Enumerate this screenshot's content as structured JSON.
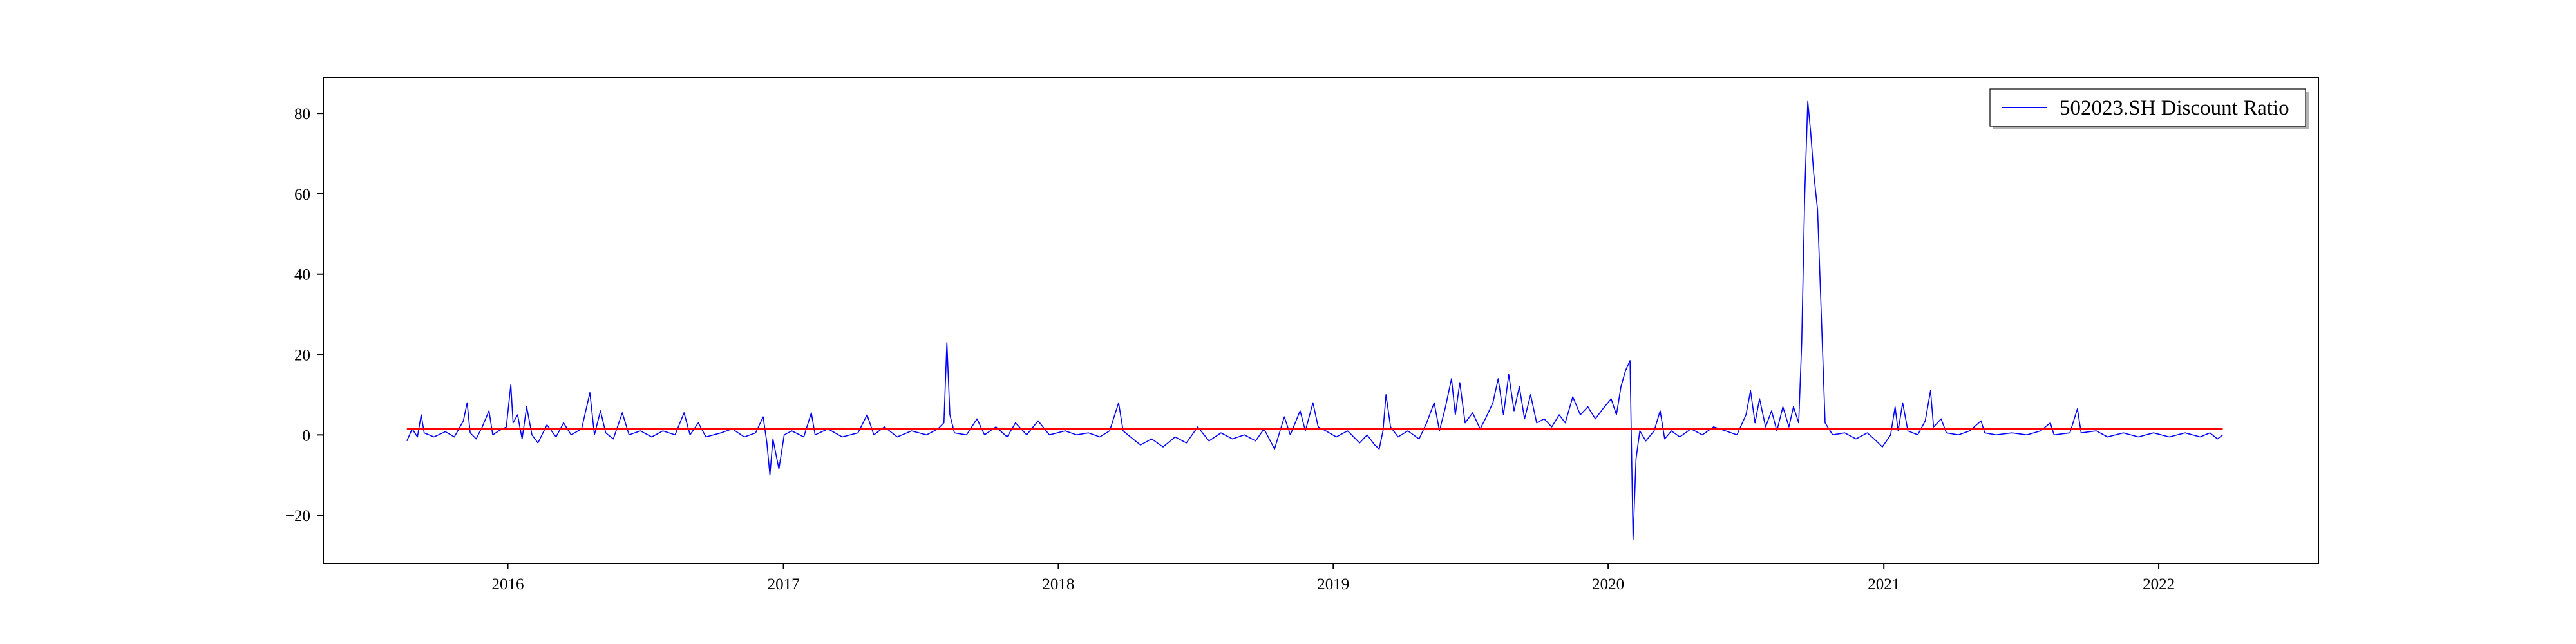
{
  "chart_data": {
    "type": "line",
    "title": "",
    "xlabel": "",
    "ylabel": "",
    "xlim": [
      "2015-05-01",
      "2022-08-01"
    ],
    "ylim": [
      -32,
      89
    ],
    "grid": false,
    "legend_placement": "top-right",
    "x_ticks": [
      {
        "date": "2016-01-01",
        "label": "2016"
      },
      {
        "date": "2017-01-01",
        "label": "2017"
      },
      {
        "date": "2018-01-01",
        "label": "2018"
      },
      {
        "date": "2019-01-01",
        "label": "2019"
      },
      {
        "date": "2020-01-01",
        "label": "2020"
      },
      {
        "date": "2021-01-01",
        "label": "2021"
      },
      {
        "date": "2022-01-01",
        "label": "2022"
      }
    ],
    "y_ticks": [
      {
        "value": 80,
        "label": "80"
      },
      {
        "value": 60,
        "label": "60"
      },
      {
        "value": 40,
        "label": "40"
      },
      {
        "value": 20,
        "label": "20"
      },
      {
        "value": 0,
        "label": "0"
      },
      {
        "value": -20,
        "label": "−20"
      }
    ],
    "series": [
      {
        "name": "502023.SH Discount Ratio",
        "color": "#0000ff",
        "points": [
          [
            "2015-08-20",
            -1.5
          ],
          [
            "2015-08-27",
            1.5
          ],
          [
            "2015-09-03",
            -0.5
          ],
          [
            "2015-09-08",
            5.0
          ],
          [
            "2015-09-12",
            0.5
          ],
          [
            "2015-09-25",
            -0.5
          ],
          [
            "2015-10-10",
            0.8
          ],
          [
            "2015-10-22",
            -0.5
          ],
          [
            "2015-11-03",
            3.5
          ],
          [
            "2015-11-08",
            8.0
          ],
          [
            "2015-11-12",
            0.5
          ],
          [
            "2015-11-20",
            -1.0
          ],
          [
            "2015-11-28",
            2.0
          ],
          [
            "2015-12-07",
            6.0
          ],
          [
            "2015-12-12",
            0.0
          ],
          [
            "2015-12-20",
            1.0
          ],
          [
            "2015-12-30",
            2.0
          ],
          [
            "2016-01-05",
            12.5
          ],
          [
            "2016-01-08",
            3.0
          ],
          [
            "2016-01-14",
            5.0
          ],
          [
            "2016-01-20",
            -1.0
          ],
          [
            "2016-01-26",
            7.0
          ],
          [
            "2016-02-02",
            0.0
          ],
          [
            "2016-02-10",
            -2.0
          ],
          [
            "2016-02-22",
            2.5
          ],
          [
            "2016-03-05",
            -0.5
          ],
          [
            "2016-03-15",
            3.0
          ],
          [
            "2016-03-25",
            0.0
          ],
          [
            "2016-04-08",
            1.5
          ],
          [
            "2016-04-19",
            10.5
          ],
          [
            "2016-04-25",
            0.0
          ],
          [
            "2016-05-03",
            6.0
          ],
          [
            "2016-05-10",
            0.5
          ],
          [
            "2016-05-20",
            -1.0
          ],
          [
            "2016-06-01",
            5.5
          ],
          [
            "2016-06-10",
            0.0
          ],
          [
            "2016-06-25",
            1.0
          ],
          [
            "2016-07-10",
            -0.5
          ],
          [
            "2016-07-25",
            1.0
          ],
          [
            "2016-08-10",
            0.0
          ],
          [
            "2016-08-22",
            5.5
          ],
          [
            "2016-08-30",
            0.0
          ],
          [
            "2016-09-10",
            3.0
          ],
          [
            "2016-09-20",
            -0.5
          ],
          [
            "2016-10-10",
            0.5
          ],
          [
            "2016-10-25",
            1.5
          ],
          [
            "2016-11-10",
            -0.5
          ],
          [
            "2016-11-25",
            0.5
          ],
          [
            "2016-12-05",
            4.5
          ],
          [
            "2016-12-10",
            -2.0
          ],
          [
            "2016-12-14",
            -10.0
          ],
          [
            "2016-12-18",
            -1.0
          ],
          [
            "2016-12-26",
            -8.5
          ],
          [
            "2017-01-02",
            0.0
          ],
          [
            "2017-01-12",
            1.0
          ],
          [
            "2017-01-28",
            -0.5
          ],
          [
            "2017-02-07",
            5.5
          ],
          [
            "2017-02-12",
            0.0
          ],
          [
            "2017-03-01",
            1.5
          ],
          [
            "2017-03-20",
            -0.5
          ],
          [
            "2017-04-10",
            0.5
          ],
          [
            "2017-04-22",
            5.0
          ],
          [
            "2017-05-01",
            0.0
          ],
          [
            "2017-05-15",
            2.0
          ],
          [
            "2017-06-01",
            -0.5
          ],
          [
            "2017-06-20",
            1.0
          ],
          [
            "2017-07-10",
            0.0
          ],
          [
            "2017-07-25",
            1.5
          ],
          [
            "2017-08-02",
            3.0
          ],
          [
            "2017-08-06",
            23.0
          ],
          [
            "2017-08-10",
            5.0
          ],
          [
            "2017-08-16",
            0.5
          ],
          [
            "2017-09-01",
            0.0
          ],
          [
            "2017-09-15",
            4.0
          ],
          [
            "2017-09-25",
            0.0
          ],
          [
            "2017-10-10",
            2.0
          ],
          [
            "2017-10-25",
            -0.5
          ],
          [
            "2017-11-05",
            3.0
          ],
          [
            "2017-11-20",
            0.0
          ],
          [
            "2017-12-05",
            3.5
          ],
          [
            "2017-12-20",
            0.0
          ],
          [
            "2018-01-10",
            1.0
          ],
          [
            "2018-01-25",
            0.0
          ],
          [
            "2018-02-10",
            0.5
          ],
          [
            "2018-02-25",
            -0.5
          ],
          [
            "2018-03-10",
            1.0
          ],
          [
            "2018-03-22",
            8.0
          ],
          [
            "2018-03-28",
            1.0
          ],
          [
            "2018-04-10",
            -1.0
          ],
          [
            "2018-04-20",
            -2.5
          ],
          [
            "2018-05-05",
            -1.0
          ],
          [
            "2018-05-20",
            -3.0
          ],
          [
            "2018-06-05",
            -0.5
          ],
          [
            "2018-06-20",
            -2.0
          ],
          [
            "2018-07-05",
            2.0
          ],
          [
            "2018-07-20",
            -1.5
          ],
          [
            "2018-08-05",
            0.5
          ],
          [
            "2018-08-20",
            -1.0
          ],
          [
            "2018-09-05",
            0.0
          ],
          [
            "2018-09-20",
            -1.5
          ],
          [
            "2018-10-01",
            1.5
          ],
          [
            "2018-10-15",
            -3.5
          ],
          [
            "2018-10-28",
            4.5
          ],
          [
            "2018-11-05",
            0.0
          ],
          [
            "2018-11-18",
            6.0
          ],
          [
            "2018-11-25",
            1.0
          ],
          [
            "2018-12-05",
            8.0
          ],
          [
            "2018-12-12",
            2.0
          ],
          [
            "2018-12-22",
            1.0
          ],
          [
            "2019-01-05",
            -0.5
          ],
          [
            "2019-01-20",
            1.0
          ],
          [
            "2019-02-05",
            -2.0
          ],
          [
            "2019-02-15",
            0.0
          ],
          [
            "2019-02-25",
            -2.5
          ],
          [
            "2019-03-03",
            -3.5
          ],
          [
            "2019-03-08",
            1.0
          ],
          [
            "2019-03-12",
            10.0
          ],
          [
            "2019-03-18",
            2.0
          ],
          [
            "2019-03-28",
            -0.5
          ],
          [
            "2019-04-10",
            1.0
          ],
          [
            "2019-04-25",
            -1.0
          ],
          [
            "2019-05-05",
            3.0
          ],
          [
            "2019-05-15",
            8.0
          ],
          [
            "2019-05-22",
            1.0
          ],
          [
            "2019-05-30",
            7.0
          ],
          [
            "2019-06-07",
            14.0
          ],
          [
            "2019-06-12",
            5.0
          ],
          [
            "2019-06-18",
            13.0
          ],
          [
            "2019-06-25",
            3.0
          ],
          [
            "2019-07-05",
            5.5
          ],
          [
            "2019-07-15",
            1.5
          ],
          [
            "2019-07-22",
            4.0
          ],
          [
            "2019-08-01",
            8.0
          ],
          [
            "2019-08-08",
            14.0
          ],
          [
            "2019-08-15",
            5.0
          ],
          [
            "2019-08-22",
            15.0
          ],
          [
            "2019-08-29",
            6.0
          ],
          [
            "2019-09-05",
            12.0
          ],
          [
            "2019-09-12",
            4.0
          ],
          [
            "2019-09-20",
            10.0
          ],
          [
            "2019-09-28",
            3.0
          ],
          [
            "2019-10-08",
            4.0
          ],
          [
            "2019-10-18",
            2.0
          ],
          [
            "2019-10-28",
            5.0
          ],
          [
            "2019-11-05",
            3.0
          ],
          [
            "2019-11-15",
            9.5
          ],
          [
            "2019-11-25",
            5.0
          ],
          [
            "2019-12-05",
            7.0
          ],
          [
            "2019-12-15",
            4.0
          ],
          [
            "2019-12-25",
            6.5
          ],
          [
            "2020-01-05",
            9.0
          ],
          [
            "2020-01-12",
            5.0
          ],
          [
            "2020-01-18",
            12.0
          ],
          [
            "2020-01-24",
            16.0
          ],
          [
            "2020-01-30",
            18.5
          ],
          [
            "2020-02-03",
            -26.0
          ],
          [
            "2020-02-07",
            -6.0
          ],
          [
            "2020-02-12",
            1.0
          ],
          [
            "2020-02-20",
            -1.5
          ],
          [
            "2020-03-02",
            1.0
          ],
          [
            "2020-03-10",
            6.0
          ],
          [
            "2020-03-16",
            -1.0
          ],
          [
            "2020-03-25",
            1.0
          ],
          [
            "2020-04-05",
            -0.5
          ],
          [
            "2020-04-20",
            1.5
          ],
          [
            "2020-05-05",
            0.0
          ],
          [
            "2020-05-20",
            2.0
          ],
          [
            "2020-06-05",
            1.0
          ],
          [
            "2020-06-20",
            0.0
          ],
          [
            "2020-07-02",
            5.0
          ],
          [
            "2020-07-08",
            11.0
          ],
          [
            "2020-07-14",
            3.0
          ],
          [
            "2020-07-20",
            9.0
          ],
          [
            "2020-07-28",
            2.0
          ],
          [
            "2020-08-05",
            6.0
          ],
          [
            "2020-08-12",
            1.0
          ],
          [
            "2020-08-20",
            7.0
          ],
          [
            "2020-08-28",
            2.0
          ],
          [
            "2020-09-03",
            7.0
          ],
          [
            "2020-09-10",
            3.0
          ],
          [
            "2020-09-14",
            23.0
          ],
          [
            "2020-09-18",
            60.0
          ],
          [
            "2020-09-22",
            83.0
          ],
          [
            "2020-09-26",
            75.0
          ],
          [
            "2020-09-30",
            65.0
          ],
          [
            "2020-10-05",
            56.0
          ],
          [
            "2020-10-10",
            30.0
          ],
          [
            "2020-10-15",
            3.0
          ],
          [
            "2020-10-25",
            0.0
          ],
          [
            "2020-11-10",
            0.5
          ],
          [
            "2020-11-25",
            -1.0
          ],
          [
            "2020-12-10",
            0.5
          ],
          [
            "2020-12-22",
            -1.5
          ],
          [
            "2020-12-30",
            -3.0
          ],
          [
            "2021-01-10",
            0.0
          ],
          [
            "2021-01-16",
            7.0
          ],
          [
            "2021-01-20",
            1.0
          ],
          [
            "2021-01-26",
            8.0
          ],
          [
            "2021-02-02",
            1.0
          ],
          [
            "2021-02-15",
            0.0
          ],
          [
            "2021-02-25",
            3.5
          ],
          [
            "2021-03-04",
            11.0
          ],
          [
            "2021-03-08",
            2.0
          ],
          [
            "2021-03-18",
            4.0
          ],
          [
            "2021-03-25",
            0.5
          ],
          [
            "2021-04-10",
            0.0
          ],
          [
            "2021-04-25",
            1.0
          ],
          [
            "2021-05-10",
            3.5
          ],
          [
            "2021-05-15",
            0.5
          ],
          [
            "2021-05-30",
            0.0
          ],
          [
            "2021-06-20",
            0.5
          ],
          [
            "2021-07-10",
            0.0
          ],
          [
            "2021-07-28",
            1.0
          ],
          [
            "2021-08-10",
            3.0
          ],
          [
            "2021-08-15",
            0.0
          ],
          [
            "2021-09-05",
            0.5
          ],
          [
            "2021-09-15",
            6.5
          ],
          [
            "2021-09-20",
            0.5
          ],
          [
            "2021-10-10",
            1.0
          ],
          [
            "2021-10-25",
            -0.5
          ],
          [
            "2021-11-15",
            0.5
          ],
          [
            "2021-12-05",
            -0.5
          ],
          [
            "2021-12-25",
            0.5
          ],
          [
            "2022-01-15",
            -0.5
          ],
          [
            "2022-02-05",
            0.5
          ],
          [
            "2022-02-25",
            -0.5
          ],
          [
            "2022-03-10",
            0.5
          ],
          [
            "2022-03-20",
            -1.0
          ],
          [
            "2022-03-27",
            0.0
          ]
        ]
      },
      {
        "color": "#ff0000",
        "points": [
          [
            "2015-08-20",
            1.5
          ],
          [
            "2022-03-27",
            1.5
          ]
        ]
      }
    ]
  }
}
